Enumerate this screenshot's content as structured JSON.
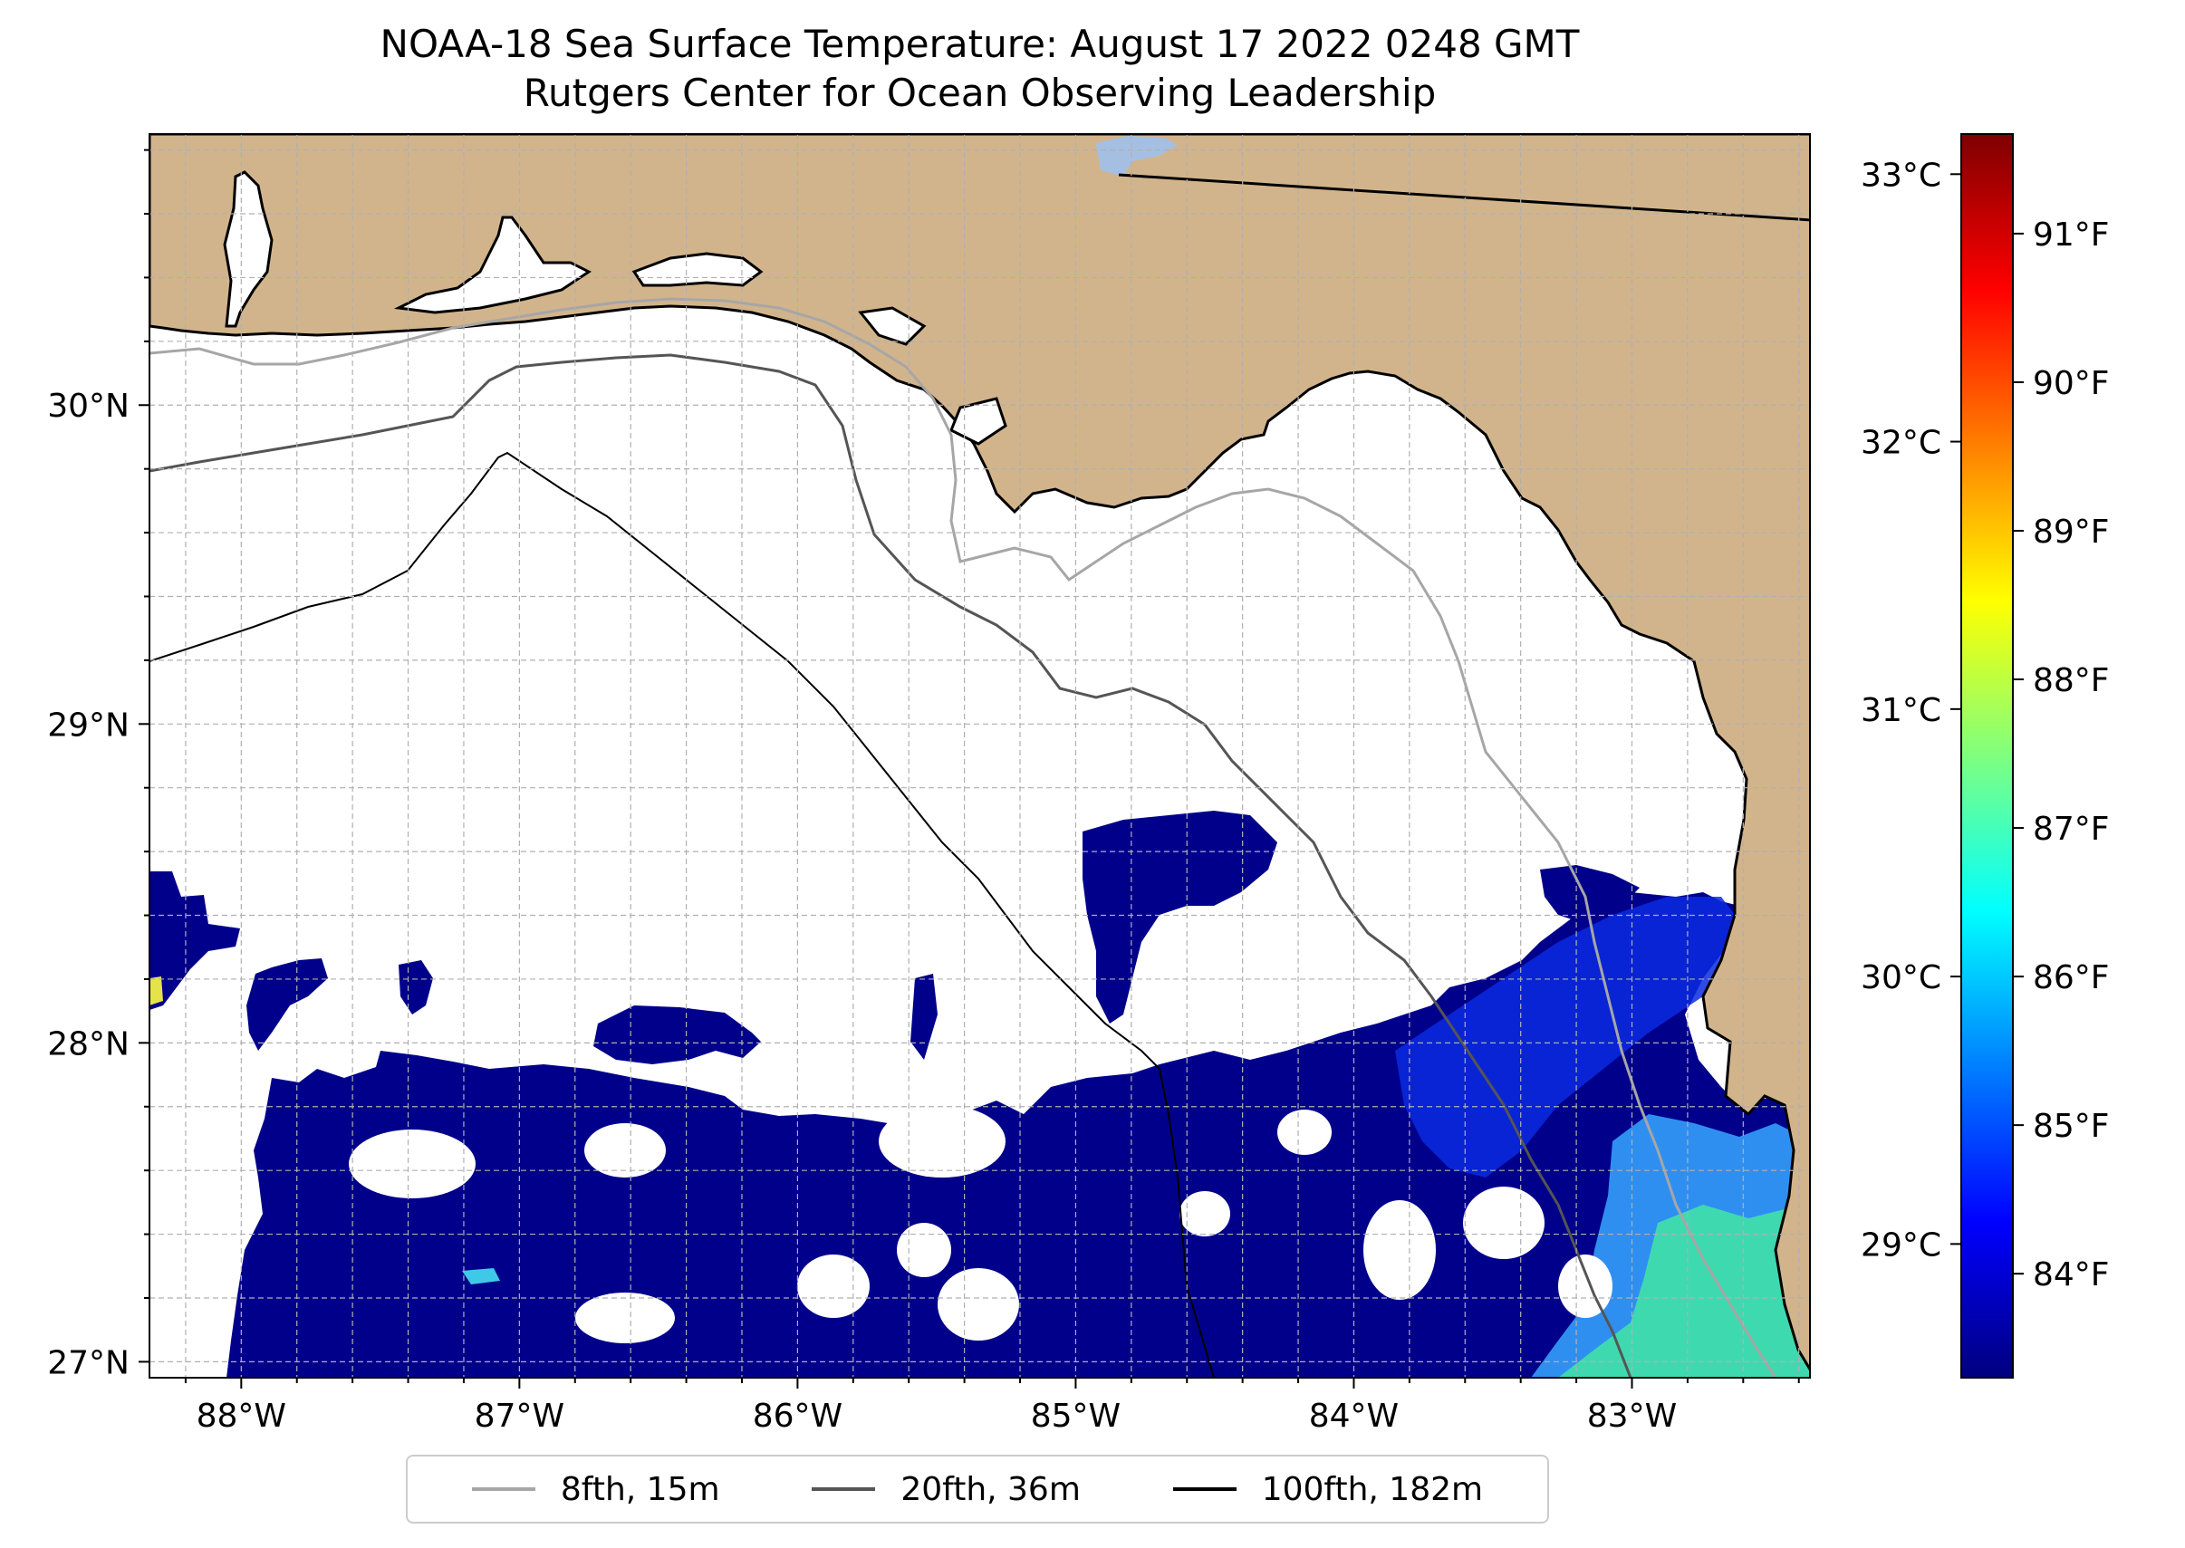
{
  "title": {
    "line1": "NOAA-18 Sea Surface Temperature: August 17 2022 0248 GMT",
    "line2": "Rutgers Center for Ocean Observing Leadership"
  },
  "colors": {
    "land": "#d2b48c",
    "water_no_data": "#ffffff",
    "lake": "#a5bfe3",
    "gridline": "#b0b0b0"
  },
  "extent": {
    "lon": [
      -88.33,
      -82.36
    ],
    "lat": [
      26.95,
      30.85
    ]
  },
  "axes": {
    "lon_ticks": [
      {
        "value": -88,
        "label": "88°W"
      },
      {
        "value": -87,
        "label": "87°W"
      },
      {
        "value": -86,
        "label": "86°W"
      },
      {
        "value": -85,
        "label": "85°W"
      },
      {
        "value": -84,
        "label": "84°W"
      },
      {
        "value": -83,
        "label": "83°W"
      }
    ],
    "lat_ticks": [
      {
        "value": 27,
        "label": "27°N"
      },
      {
        "value": 28,
        "label": "28°N"
      },
      {
        "value": 29,
        "label": "29°N"
      },
      {
        "value": 30,
        "label": "30°N"
      }
    ]
  },
  "colorbar": {
    "range_c": [
      28.5,
      33.15
    ],
    "colors": [
      "#00007f",
      "#0000ff",
      "#007fff",
      "#00ffff",
      "#7fff7f",
      "#ffff00",
      "#ff7f00",
      "#ff0000",
      "#7f0000"
    ],
    "celsius_ticks": [
      {
        "value": 29,
        "label": "29°C"
      },
      {
        "value": 30,
        "label": "30°C"
      },
      {
        "value": 31,
        "label": "31°C"
      },
      {
        "value": 32,
        "label": "32°C"
      },
      {
        "value": 33,
        "label": "33°C"
      }
    ],
    "fahrenheit_ticks": [
      {
        "value": 84,
        "label": "84°F"
      },
      {
        "value": 85,
        "label": "85°F"
      },
      {
        "value": 86,
        "label": "86°F"
      },
      {
        "value": 87,
        "label": "87°F"
      },
      {
        "value": 88,
        "label": "88°F"
      },
      {
        "value": 89,
        "label": "89°F"
      },
      {
        "value": 90,
        "label": "90°F"
      },
      {
        "value": 91,
        "label": "91°F"
      }
    ]
  },
  "legend": [
    {
      "label": "8fth, 15m",
      "color": "#a6a6a6"
    },
    {
      "label": "20fth, 36m",
      "color": "#555555"
    },
    {
      "label": "100fth, 182m",
      "color": "#000000"
    }
  ]
}
